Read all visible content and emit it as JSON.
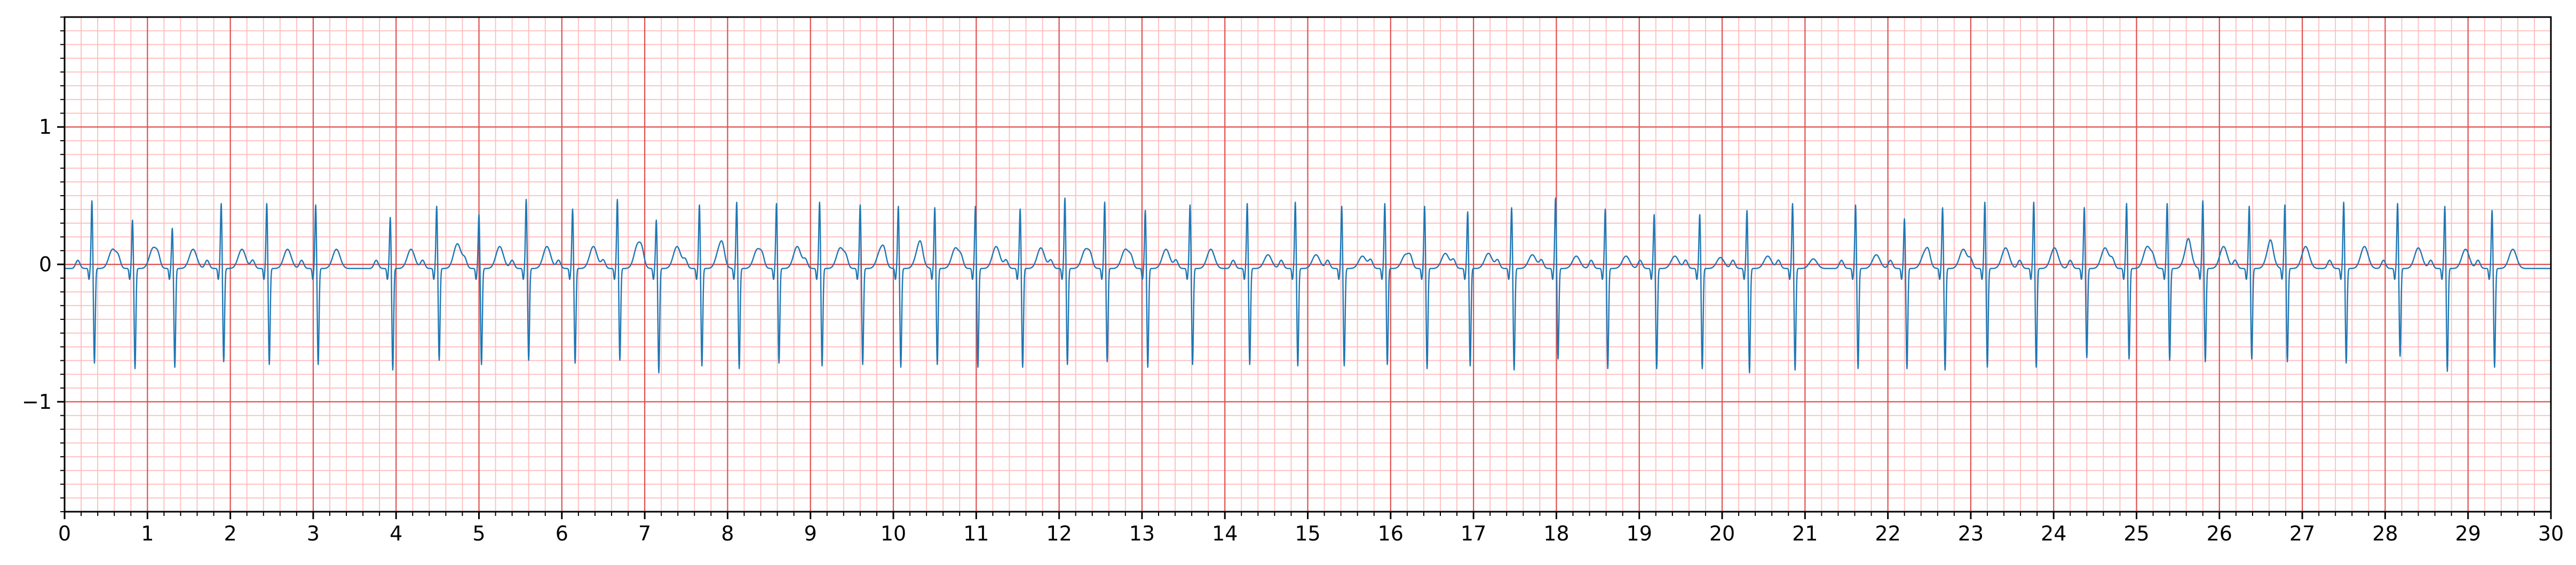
{
  "chart_data": {
    "type": "line",
    "title": "",
    "xlabel": "",
    "ylabel": "",
    "xlim": [
      0,
      30
    ],
    "ylim": [
      -1.8,
      1.8
    ],
    "x_ticks": [
      0,
      1,
      2,
      3,
      4,
      5,
      6,
      7,
      8,
      9,
      10,
      11,
      12,
      13,
      14,
      15,
      16,
      17,
      18,
      19,
      20,
      21,
      22,
      23,
      24,
      25,
      26,
      27,
      28,
      29,
      30
    ],
    "x_tick_labels": [
      "0",
      "1",
      "2",
      "3",
      "4",
      "5",
      "6",
      "7",
      "8",
      "9",
      "10",
      "11",
      "12",
      "13",
      "14",
      "15",
      "16",
      "17",
      "18",
      "19",
      "20",
      "21",
      "22",
      "23",
      "24",
      "25",
      "26",
      "27",
      "28",
      "29",
      "30"
    ],
    "y_ticks": [
      -1,
      0,
      1
    ],
    "y_tick_labels": [
      "−1",
      "0",
      "1"
    ],
    "grid": {
      "major": true,
      "minor": true,
      "x_major_step": 1,
      "x_minor_step": 0.2,
      "y_major_step": 1,
      "y_minor_step": 0.1,
      "major_color": "#e05050",
      "minor_color": "#ffbcbc"
    },
    "line_color": "#1f77b4",
    "series": [
      {
        "name": "",
        "beat_times": [
          0.33,
          0.82,
          1.3,
          1.89,
          2.44,
          3.03,
          3.93,
          4.49,
          5.0,
          5.57,
          6.13,
          6.67,
          7.14,
          7.66,
          8.11,
          8.59,
          9.11,
          9.6,
          10.06,
          10.5,
          10.99,
          11.53,
          12.07,
          12.55,
          13.04,
          13.58,
          14.27,
          14.85,
          15.41,
          15.93,
          16.41,
          16.93,
          17.46,
          17.99,
          18.59,
          19.18,
          19.73,
          20.3,
          20.85,
          21.61,
          22.2,
          22.66,
          23.17,
          23.76,
          24.37,
          24.88,
          25.37,
          25.8,
          26.36,
          26.79,
          27.5,
          28.15,
          28.72,
          29.29
        ],
        "r_amplitudes": [
          0.5,
          0.36,
          0.3,
          0.48,
          0.48,
          0.47,
          0.38,
          0.46,
          0.4,
          0.51,
          0.44,
          0.51,
          0.36,
          0.47,
          0.49,
          0.48,
          0.49,
          0.47,
          0.46,
          0.45,
          0.46,
          0.44,
          0.52,
          0.49,
          0.43,
          0.47,
          0.48,
          0.49,
          0.46,
          0.48,
          0.46,
          0.42,
          0.45,
          0.52,
          0.44,
          0.4,
          0.4,
          0.43,
          0.48,
          0.47,
          0.37,
          0.45,
          0.49,
          0.49,
          0.45,
          0.48,
          0.48,
          0.5,
          0.46,
          0.47,
          0.49,
          0.48,
          0.46,
          0.43
        ],
        "s_amplitudes": [
          -0.69,
          -0.73,
          -0.72,
          -0.68,
          -0.7,
          -0.7,
          -0.74,
          -0.67,
          -0.7,
          -0.67,
          -0.69,
          -0.67,
          -0.76,
          -0.71,
          -0.73,
          -0.69,
          -0.71,
          -0.7,
          -0.72,
          -0.7,
          -0.72,
          -0.72,
          -0.7,
          -0.68,
          -0.72,
          -0.7,
          -0.7,
          -0.71,
          -0.71,
          -0.7,
          -0.73,
          -0.71,
          -0.74,
          -0.66,
          -0.73,
          -0.73,
          -0.73,
          -0.76,
          -0.74,
          -0.73,
          -0.73,
          -0.74,
          -0.72,
          -0.72,
          -0.65,
          -0.66,
          -0.67,
          -0.68,
          -0.66,
          -0.68,
          -0.69,
          -0.64,
          -0.75,
          -0.72
        ],
        "t_amplitudes": [
          0.14,
          0.15,
          0.14,
          0.14,
          0.14,
          0.14,
          0.14,
          0.18,
          0.16,
          0.16,
          0.16,
          0.18,
          0.16,
          0.16,
          0.14,
          0.16,
          0.15,
          0.14,
          0.15,
          0.15,
          0.16,
          0.15,
          0.14,
          0.14,
          0.14,
          0.14,
          0.1,
          0.1,
          0.09,
          0.1,
          0.11,
          0.11,
          0.1,
          0.09,
          0.09,
          0.09,
          0.08,
          0.09,
          0.07,
          0.1,
          0.12,
          0.14,
          0.15,
          0.15,
          0.15,
          0.16,
          0.16,
          0.16,
          0.15,
          0.16,
          0.16,
          0.15,
          0.14,
          0.14
        ]
      }
    ]
  }
}
